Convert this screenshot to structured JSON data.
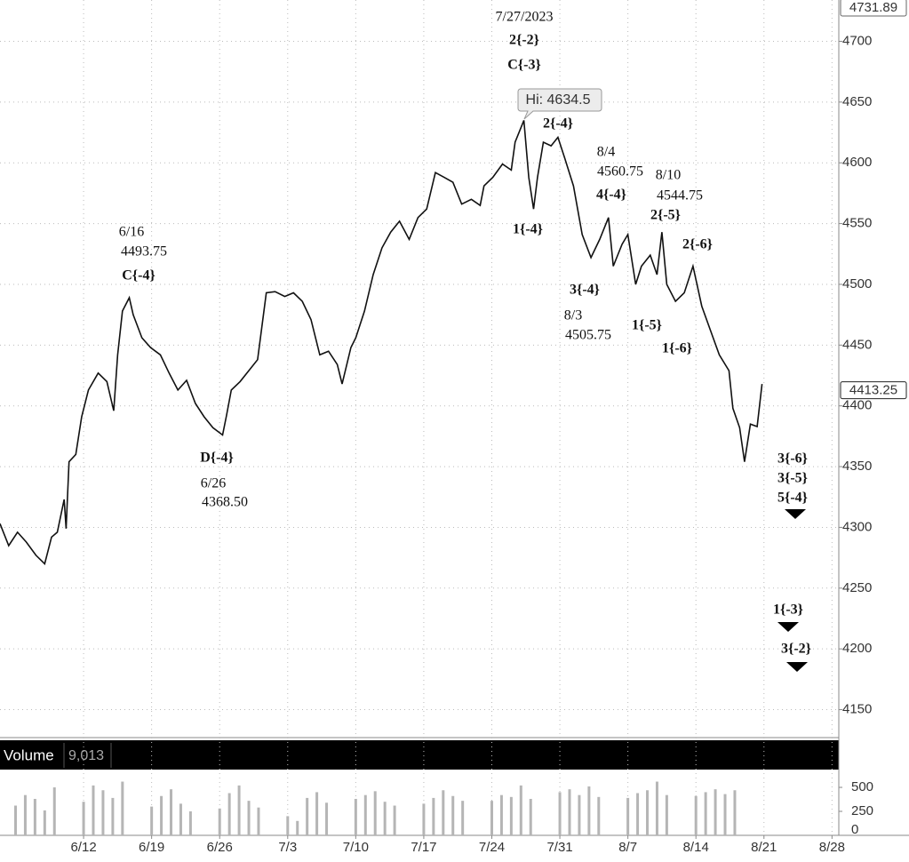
{
  "chart_data": {
    "type": "line",
    "series": [
      {
        "name": "Price",
        "color": "#111111",
        "x": [
          -8.6,
          -7.7,
          -6.8,
          -5.9,
          -4.9,
          -4.0,
          -3.3,
          -2.7,
          -2.0,
          -1.8,
          -1.5,
          -0.8,
          -0.2,
          0.5,
          1.5,
          2.4,
          3.1,
          3.5,
          4.0,
          4.7,
          5.1,
          6.0,
          6.9,
          7.9,
          8.8,
          9.7,
          10.6,
          11.5,
          12.4,
          13.3,
          14.3,
          14.7,
          15.2,
          16.1,
          17.0,
          17.9,
          18.8,
          19.7,
          20.7,
          21.6,
          22.5,
          23.4,
          24.3,
          25.2,
          26.1,
          26.6,
          27.5,
          28.0,
          28.9,
          29.8,
          30.7,
          31.6,
          32.5,
          33.5,
          34.4,
          35.3,
          36.2,
          37.1,
          38.0,
          38.9,
          39.9,
          40.8,
          41.2,
          42.1,
          43.1,
          44.0,
          44.4,
          45.3,
          45.8,
          46.3,
          46.7,
          47.3,
          48.1,
          48.8,
          49.5,
          50.4,
          51.3,
          52.2,
          53.1,
          54.0,
          54.5,
          55.4,
          56.0,
          56.8,
          57.4,
          58.3,
          59.0,
          59.5,
          60.0,
          60.9,
          61.8,
          62.7,
          63.6,
          64.5,
          65.4,
          66.4,
          66.8,
          67.5,
          68.0,
          68.6,
          69.3,
          69.8
        ],
        "values": [
          4303,
          4285,
          4296,
          4288,
          4277,
          4270,
          4292,
          4296,
          4323,
          4299,
          4354,
          4360,
          4391,
          4413,
          4427,
          4420,
          4396,
          4442,
          4478,
          4489,
          4475,
          4456,
          4448,
          4442,
          4427,
          4413,
          4421,
          4402,
          4391,
          4382,
          4376,
          4392,
          4413,
          4420,
          4429,
          4438,
          4493,
          4494,
          4490,
          4493,
          4486,
          4471,
          4442,
          4445,
          4434,
          4418,
          4448,
          4456,
          4478,
          4508,
          4530,
          4543,
          4552,
          4537,
          4555,
          4562,
          4592,
          4588,
          4584,
          4566,
          4570,
          4565,
          4581,
          4588,
          4599,
          4594,
          4617,
          4635,
          4588,
          4562,
          4588,
          4617,
          4614,
          4621,
          4604,
          4581,
          4541,
          4522,
          4537,
          4555,
          4515,
          4533,
          4541,
          4500,
          4515,
          4524,
          4508,
          4543,
          4500,
          4486,
          4493,
          4515,
          4482,
          4462,
          4442,
          4429,
          4398,
          4382,
          4354,
          4385,
          4383,
          4418
        ]
      }
    ],
    "xlim": [
      -8.6,
      77.7
    ],
    "xticks": [
      {
        "value": 0,
        "label": "6/12"
      },
      {
        "value": 7,
        "label": "6/19"
      },
      {
        "value": 14,
        "label": "6/26"
      },
      {
        "value": 21,
        "label": "7/3"
      },
      {
        "value": 28,
        "label": "7/10"
      },
      {
        "value": 35,
        "label": "7/17"
      },
      {
        "value": 42,
        "label": "7/24"
      },
      {
        "value": 49,
        "label": "7/31"
      },
      {
        "value": 56,
        "label": "8/7"
      },
      {
        "value": 63,
        "label": "8/14"
      },
      {
        "value": 70,
        "label": "8/21"
      },
      {
        "value": 77,
        "label": "8/28"
      }
    ],
    "ylim": [
      4127,
      4734
    ],
    "yticks": [
      4150,
      4200,
      4250,
      4300,
      4350,
      4400,
      4450,
      4500,
      4550,
      4600,
      4650,
      4700
    ],
    "grid": true,
    "price_tags": [
      4731.89,
      4413.25
    ],
    "annotations": [
      "7/27/2023",
      "2{-2}",
      "C{-3}",
      "Hi: 4634.5",
      "2{-4}",
      "8/4",
      "4560.75",
      "4{-4}",
      "8/10",
      "4544.75",
      "2{-5}",
      "2{-6}",
      "1{-4}",
      "3{-4}",
      "8/3",
      "4505.75",
      "1{-5}",
      "1{-6}",
      "6/16",
      "4493.75",
      "C{-4}",
      "D{-4}",
      "6/26",
      "4368.50",
      "3{-6}",
      "3{-5}",
      "5{-4}",
      "1{-3}",
      "3{-2}"
    ],
    "volume": {
      "title": "Volume",
      "current": "9,013",
      "color": "#b5b5b5",
      "x": [
        -7,
        -6,
        -5,
        -4,
        -3,
        0,
        1,
        2,
        3,
        4,
        7,
        8,
        9,
        10,
        11,
        14,
        15,
        16,
        17,
        18,
        21,
        22,
        23,
        24,
        25,
        28,
        29,
        30,
        31,
        32,
        35,
        36,
        37,
        38,
        39,
        42,
        43,
        44,
        45,
        46,
        49,
        50,
        51,
        52,
        53,
        56,
        57,
        58,
        59,
        60,
        63,
        64,
        65,
        66,
        67
      ],
      "values": [
        310,
        420,
        380,
        260,
        500,
        350,
        520,
        470,
        390,
        560,
        300,
        410,
        480,
        330,
        250,
        280,
        440,
        520,
        360,
        290,
        200,
        150,
        390,
        450,
        340,
        380,
        420,
        460,
        350,
        310,
        330,
        390,
        470,
        410,
        360,
        360,
        420,
        400,
        520,
        380,
        450,
        480,
        420,
        510,
        400,
        390,
        440,
        470,
        560,
        420,
        410,
        450,
        480,
        430,
        470
      ],
      "ylim": [
        0,
        667
      ],
      "yticks": [
        0,
        250,
        500
      ]
    }
  }
}
